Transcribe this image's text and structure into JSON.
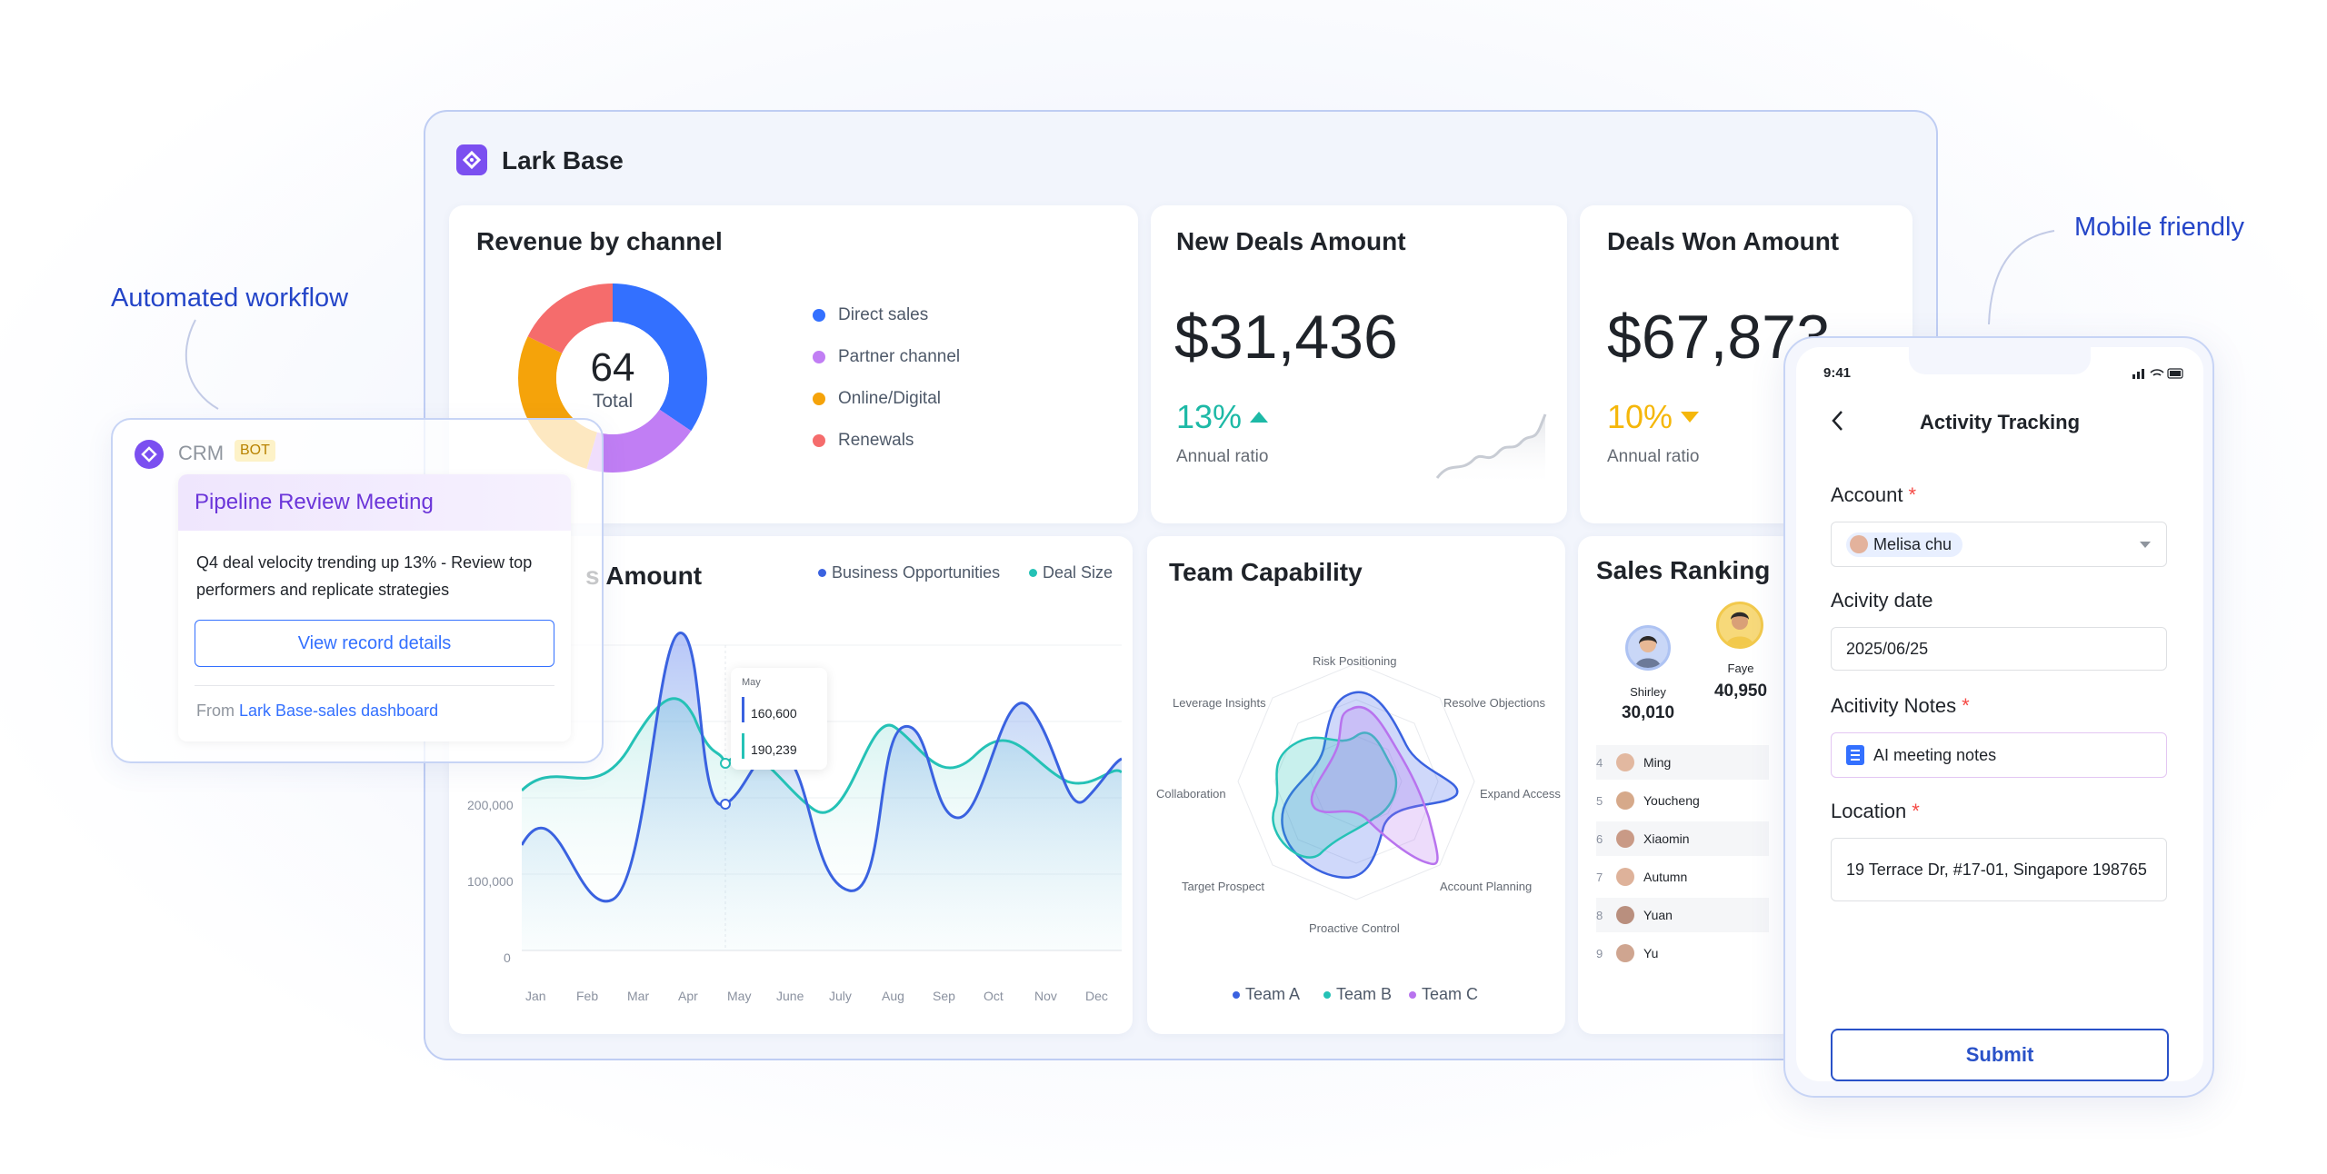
{
  "callouts": {
    "automated": "Automated workflow",
    "mobile": "Mobile friendly"
  },
  "app": {
    "title": "Lark Base"
  },
  "revenue": {
    "title": "Revenue by channel",
    "total_value": "64",
    "total_label": "Total",
    "legend": [
      {
        "label": "Direct sales",
        "color": "#3370ff"
      },
      {
        "label": "Partner channel",
        "color": "#c17ef4"
      },
      {
        "label": "Online/Digital",
        "color": "#f5a30a"
      },
      {
        "label": "Renewals",
        "color": "#f56c6c"
      }
    ]
  },
  "new_deals": {
    "title": "New Deals Amount",
    "value": "$31,436",
    "ratio": "13%",
    "ratio_label": "Annual ratio",
    "ratio_color": "#1db9a6"
  },
  "deals_won": {
    "title": "Deals Won Amount",
    "value": "$67,873",
    "ratio": "10%",
    "ratio_label": "Annual ratio",
    "ratio_color": "#f5b70a"
  },
  "amount_chart": {
    "title": "s Amount",
    "legend_a": "Business Opportunities",
    "legend_b": "Deal Size",
    "y_ticks": [
      "200,000",
      "100,000",
      "0"
    ],
    "x_ticks": [
      "Jan",
      "Feb",
      "Mar",
      "Apr",
      "May",
      "June",
      "July",
      "Aug",
      "Sep",
      "Oct",
      "Nov",
      "Dec"
    ],
    "tooltip": {
      "month": "May",
      "value_a": "160,600",
      "value_b": "190,239"
    }
  },
  "team": {
    "title": "Team Capability",
    "axes": [
      "Risk Positioning",
      "Resolve Objections",
      "Expand Access",
      "Account Planning",
      "Proactive Control",
      "Target Prospect",
      "Collaboration",
      "Leverage Insights"
    ],
    "legend": [
      {
        "label": "Team A",
        "color": "#3a62e0"
      },
      {
        "label": "Team B",
        "color": "#25c2b6"
      },
      {
        "label": "Team C",
        "color": "#b873ee"
      }
    ]
  },
  "ranking": {
    "title": "Sales Ranking",
    "top": [
      {
        "name": "Shirley",
        "value": "30,010"
      },
      {
        "name": "Faye",
        "value": "40,950"
      }
    ],
    "rows": [
      {
        "rank": "4",
        "name": "Ming"
      },
      {
        "rank": "5",
        "name": "Youcheng"
      },
      {
        "rank": "6",
        "name": "Xiaomin"
      },
      {
        "rank": "7",
        "name": "Autumn"
      },
      {
        "rank": "8",
        "name": "Yuan"
      },
      {
        "rank": "9",
        "name": "Yu"
      }
    ]
  },
  "crm": {
    "name": "CRM",
    "badge": "BOT",
    "meeting": "Pipeline Review Meeting",
    "message": "Q4 deal velocity trending up 13% - Review top performers and replicate strategies",
    "button": "View record details",
    "from_prefix": "From",
    "from_link": "Lark Base-sales dashboard"
  },
  "mobile": {
    "time": "9:41",
    "title": "Activity Tracking",
    "account_label": "Account",
    "account_value": "Melisa chu",
    "date_label": "Acivity date",
    "date_value": "2025/06/25",
    "notes_label": "Acitivity Notes",
    "notes_value": "AI meeting notes",
    "location_label": "Location",
    "location_value": "19 Terrace Dr, #17-01, Singapore 198765",
    "submit": "Submit",
    "required": "*"
  }
}
